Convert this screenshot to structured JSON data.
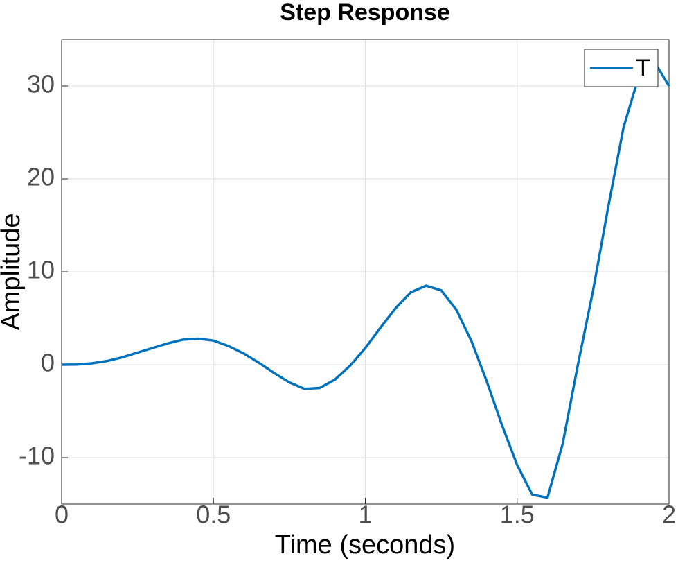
{
  "chart_data": {
    "type": "line",
    "title": "Step Response",
    "x_label": "Time (seconds)",
    "y_label": "Amplitude",
    "x": [
      0,
      0.05,
      0.1,
      0.15,
      0.2,
      0.25,
      0.3,
      0.35,
      0.4,
      0.45,
      0.5,
      0.55,
      0.6,
      0.65,
      0.7,
      0.75,
      0.8,
      0.85,
      0.9,
      0.95,
      1.0,
      1.05,
      1.1,
      1.15,
      1.2,
      1.25,
      1.3,
      1.35,
      1.4,
      1.45,
      1.5,
      1.55,
      1.6,
      1.65,
      1.7,
      1.75,
      1.8,
      1.85,
      1.9,
      1.95,
      2.0
    ],
    "series": [
      {
        "name": "T",
        "color": "#0072bd",
        "values": [
          0,
          0.02,
          0.15,
          0.4,
          0.8,
          1.3,
          1.8,
          2.3,
          2.7,
          2.8,
          2.6,
          2.0,
          1.2,
          0.2,
          -0.9,
          -1.9,
          -2.6,
          -2.5,
          -1.6,
          -0.1,
          1.8,
          4.0,
          6.1,
          7.8,
          8.5,
          8.0,
          5.9,
          2.5,
          -1.8,
          -6.5,
          -10.8,
          -14.0,
          -14.3,
          -8.5,
          0,
          8,
          17,
          25.5,
          31.0,
          32.7,
          30
        ]
      }
    ],
    "xlim": [
      0,
      2
    ],
    "xticks": [
      0,
      0.5,
      1,
      1.5,
      2
    ],
    "ylim": [
      -15,
      35
    ],
    "yticks": [
      -10,
      0,
      10,
      20,
      30
    ],
    "grid": true,
    "legend": "upper right"
  }
}
